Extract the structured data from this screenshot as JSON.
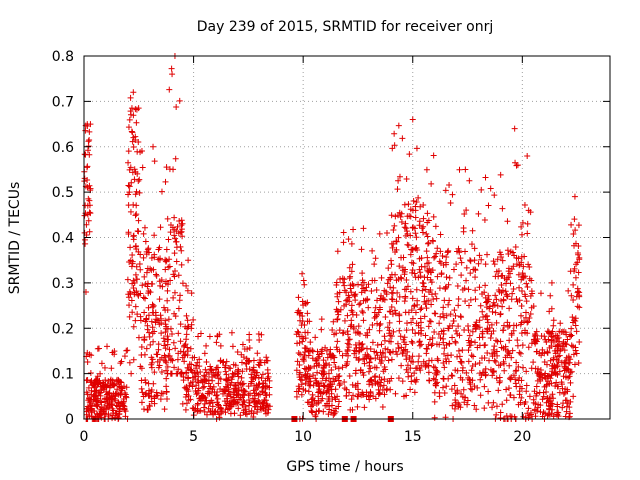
{
  "chart_data": {
    "type": "scatter",
    "title": "Day 239 of 2015, SRMTID for receiver onrj",
    "xlabel": "GPS time / hours",
    "ylabel": "SRMTID / TECUs",
    "xlim": [
      0,
      24
    ],
    "ylim": [
      0,
      0.8
    ],
    "xticks": [
      0,
      5,
      10,
      15,
      20
    ],
    "yticks": [
      0,
      0.1,
      0.2,
      0.3,
      0.4,
      0.5,
      0.6,
      0.7,
      0.8
    ],
    "xtick_labels": [
      "0",
      "5",
      "10",
      "15",
      "20"
    ],
    "ytick_labels": [
      "0",
      "0.1",
      "0.2",
      "0.3",
      "0.4",
      "0.5",
      "0.6",
      "0.7",
      "0.8"
    ],
    "grid": true,
    "marker": "+",
    "color": "#e00000",
    "series": [
      {
        "name": "SRMTID",
        "segments": [
          {
            "x_start": 0.0,
            "x_end": 0.3,
            "y_min": 0.28,
            "y_max": 0.65,
            "y_typical": 0.52,
            "count": 40
          },
          {
            "x_start": 0.1,
            "x_end": 2.0,
            "y_min": 0.0,
            "y_max": 0.16,
            "y_typical": 0.04,
            "count": 260
          },
          {
            "x_start": 2.0,
            "x_end": 2.5,
            "y_min": 0.1,
            "y_max": 0.72,
            "y_typical": 0.45,
            "count": 90
          },
          {
            "x_start": 2.5,
            "x_end": 3.8,
            "y_min": 0.02,
            "y_max": 0.6,
            "y_typical": 0.2,
            "count": 180
          },
          {
            "x_start": 3.8,
            "x_end": 4.5,
            "y_min": 0.1,
            "y_max": 0.8,
            "y_typical": 0.25,
            "count": 90
          },
          {
            "x_start": 4.5,
            "x_end": 5.0,
            "y_min": 0.02,
            "y_max": 0.35,
            "y_typical": 0.12,
            "count": 60
          },
          {
            "x_start": 5.0,
            "x_end": 8.5,
            "y_min": 0.0,
            "y_max": 0.19,
            "y_typical": 0.07,
            "count": 380
          },
          {
            "x_start": 9.7,
            "x_end": 10.2,
            "y_min": 0.0,
            "y_max": 0.32,
            "y_typical": 0.15,
            "count": 70
          },
          {
            "x_start": 10.2,
            "x_end": 11.5,
            "y_min": 0.0,
            "y_max": 0.22,
            "y_typical": 0.08,
            "count": 160
          },
          {
            "x_start": 11.5,
            "x_end": 14.0,
            "y_min": 0.02,
            "y_max": 0.42,
            "y_typical": 0.18,
            "count": 300
          },
          {
            "x_start": 14.0,
            "x_end": 16.0,
            "y_min": 0.05,
            "y_max": 0.66,
            "y_typical": 0.28,
            "count": 280
          },
          {
            "x_start": 16.0,
            "x_end": 18.8,
            "y_min": 0.0,
            "y_max": 0.55,
            "y_typical": 0.2,
            "count": 320
          },
          {
            "x_start": 18.8,
            "x_end": 20.5,
            "y_min": 0.0,
            "y_max": 0.64,
            "y_typical": 0.18,
            "count": 220
          },
          {
            "x_start": 20.5,
            "x_end": 22.2,
            "y_min": 0.0,
            "y_max": 0.3,
            "y_typical": 0.1,
            "count": 240
          },
          {
            "x_start": 22.2,
            "x_end": 22.6,
            "y_min": 0.05,
            "y_max": 0.49,
            "y_typical": 0.28,
            "count": 50
          }
        ],
        "baseline_points": [
          9.6,
          11.9,
          12.3,
          14.0
        ]
      }
    ]
  }
}
